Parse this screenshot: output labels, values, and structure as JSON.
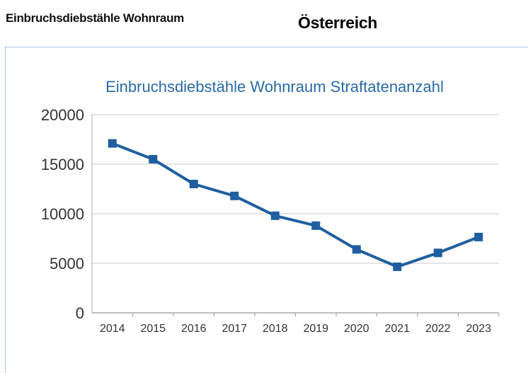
{
  "header": {
    "title": "Einbruchsdiebstähle Wohnraum",
    "brand": "Österreich"
  },
  "colors": {
    "line": "#1f5fa0",
    "title": "#2b6aa6",
    "grid": "#d4d4d4",
    "frame": "#a9c4e4"
  },
  "chart_data": {
    "type": "line",
    "title": "Einbruchsdiebstähle Wohnraum Straftatenanzahl",
    "xlabel": "",
    "ylabel": "",
    "categories": [
      "2014",
      "2015",
      "2016",
      "2017",
      "2018",
      "2019",
      "2020",
      "2021",
      "2022",
      "2023"
    ],
    "series": [
      {
        "name": "Straftatenanzahl",
        "values": [
          17100,
          15500,
          13000,
          11800,
          9800,
          8800,
          6400,
          4650,
          6050,
          7650
        ],
        "marker": "square"
      }
    ],
    "ylim": [
      0,
      20000
    ],
    "yticks": [
      "0",
      "5000",
      "10000",
      "15000",
      "20000"
    ],
    "grid": true,
    "legend": "none"
  }
}
